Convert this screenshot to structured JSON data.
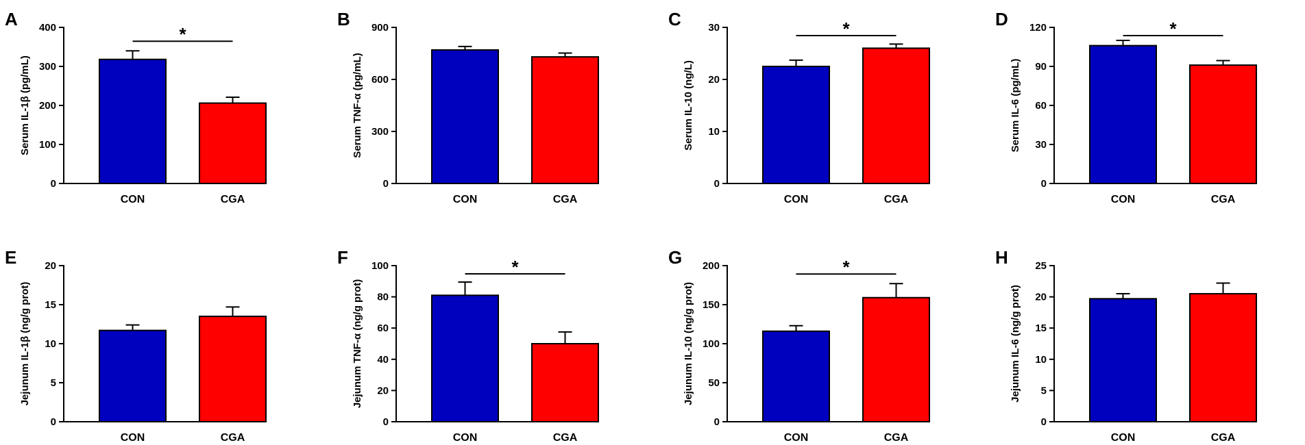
{
  "colors": {
    "CON": "#0000bf",
    "CGA": "#ff0000"
  },
  "chart_data": [
    {
      "panel": "A",
      "type": "bar",
      "categories": [
        "CON",
        "CGA"
      ],
      "values": [
        318,
        206
      ],
      "errors": [
        22,
        15
      ],
      "ylabel": "Serum IL-1β (pg/mL)",
      "ylim": [
        0,
        400
      ],
      "yticks": [
        "0",
        "100",
        "200",
        "300",
        "400"
      ],
      "significance": "*"
    },
    {
      "panel": "B",
      "type": "bar",
      "categories": [
        "CON",
        "CGA"
      ],
      "values": [
        770,
        730
      ],
      "errors": [
        20,
        22
      ],
      "ylabel": "Serum TNF-α (pg/mL)",
      "ylim": [
        0,
        900
      ],
      "yticks": [
        "0",
        "300",
        "600",
        "900"
      ],
      "significance": ""
    },
    {
      "panel": "C",
      "type": "bar",
      "categories": [
        "CON",
        "CGA"
      ],
      "values": [
        22.5,
        26
      ],
      "errors": [
        1.2,
        0.8
      ],
      "ylabel": "Serum IL-10 (ng/L)",
      "ylim": [
        0,
        30
      ],
      "yticks": [
        "0",
        "10",
        "20",
        "30"
      ],
      "significance": "*"
    },
    {
      "panel": "D",
      "type": "bar",
      "categories": [
        "CON",
        "CGA"
      ],
      "values": [
        106,
        91
      ],
      "errors": [
        4,
        3.5
      ],
      "ylabel": "Serum IL-6 (pg/mL)",
      "ylim": [
        0,
        120
      ],
      "yticks": [
        "0",
        "30",
        "60",
        "90",
        "120"
      ],
      "significance": "*"
    },
    {
      "panel": "E",
      "type": "bar",
      "categories": [
        "CON",
        "CGA"
      ],
      "values": [
        11.7,
        13.5
      ],
      "errors": [
        0.7,
        1.2
      ],
      "ylabel": "Jejunum IL-1β (ng/g prot)",
      "ylim": [
        0,
        20
      ],
      "yticks": [
        "0",
        "5",
        "10",
        "15",
        "20"
      ],
      "significance": ""
    },
    {
      "panel": "F",
      "type": "bar",
      "categories": [
        "CON",
        "CGA"
      ],
      "values": [
        81,
        50
      ],
      "errors": [
        8.5,
        7.5
      ],
      "ylabel": "Jejunum TNF-α (ng/g prot)",
      "ylim": [
        0,
        100
      ],
      "yticks": [
        "0",
        "20",
        "40",
        "60",
        "80",
        "100"
      ],
      "significance": "*"
    },
    {
      "panel": "G",
      "type": "bar",
      "categories": [
        "CON",
        "CGA"
      ],
      "values": [
        116,
        159
      ],
      "errors": [
        7,
        18
      ],
      "ylabel": "Jejunum IL-10 (ng/g prot)",
      "ylim": [
        0,
        200
      ],
      "yticks": [
        "0",
        "50",
        "100",
        "150",
        "200"
      ],
      "significance": "*"
    },
    {
      "panel": "H",
      "type": "bar",
      "categories": [
        "CON",
        "CGA"
      ],
      "values": [
        19.7,
        20.5
      ],
      "errors": [
        0.8,
        1.7
      ],
      "ylabel": "Jejunum IL-6 (ng/g prot)",
      "ylim": [
        0,
        25
      ],
      "yticks": [
        "0",
        "5",
        "10",
        "15",
        "20",
        "25"
      ],
      "significance": ""
    }
  ]
}
